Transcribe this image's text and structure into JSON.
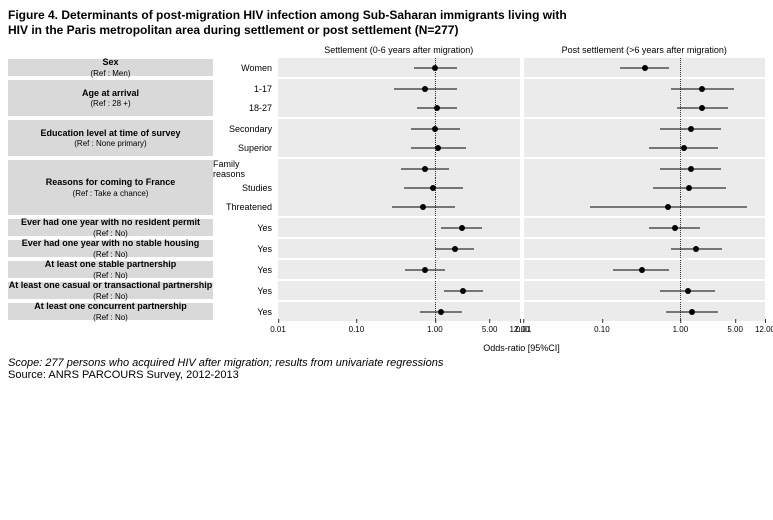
{
  "title_l1": "Figure 4. Determinants of post-migration HIV infection among Sub-Saharan immigrants living with",
  "title_l2": "HIV in the Paris metropolitan area during settlement or post settlement (N=277)",
  "panel_titles": [
    "Settlement (0-6 years after migration)",
    "Post settlement (>6 years after migration)"
  ],
  "xaxis": {
    "label": "Odds-ratio [95%CI]",
    "log_min": 0.01,
    "log_max": 12.0,
    "ticks": [
      0.01,
      0.1,
      1.0,
      5.0,
      12.0
    ],
    "tick_labels": [
      "0.01",
      "0.10",
      "1.00",
      "5.00",
      "12.00"
    ],
    "refline": 1.0
  },
  "colors": {
    "strip_bg": "#ebebeb",
    "group_bg": "#d9d9d9",
    "point": "#000000",
    "refline": "#333333",
    "background": "#ffffff"
  },
  "groups": [
    {
      "label": "Sex",
      "ref": "(Ref : Men)",
      "levels": [
        {
          "name": "Women",
          "panelA": {
            "or": 1.0,
            "lo": 0.55,
            "hi": 1.9
          },
          "panelB": {
            "or": 0.35,
            "lo": 0.17,
            "hi": 0.72
          }
        }
      ]
    },
    {
      "label": "Age at arrival",
      "ref": "(Ref : 28 +)",
      "levels": [
        {
          "name": "1-17",
          "panelA": {
            "or": 0.75,
            "lo": 0.3,
            "hi": 1.9
          },
          "panelB": {
            "or": 1.9,
            "lo": 0.75,
            "hi": 4.8
          }
        },
        {
          "name": "18-27",
          "panelA": {
            "or": 1.05,
            "lo": 0.6,
            "hi": 1.9
          },
          "panelB": {
            "or": 1.9,
            "lo": 0.9,
            "hi": 4.0
          }
        }
      ]
    },
    {
      "label": "Education level at time of survey",
      "ref": "(Ref : None primary)",
      "levels": [
        {
          "name": "Secondary",
          "panelA": {
            "or": 1.0,
            "lo": 0.5,
            "hi": 2.1
          },
          "panelB": {
            "or": 1.35,
            "lo": 0.55,
            "hi": 3.3
          }
        },
        {
          "name": "Superior",
          "panelA": {
            "or": 1.1,
            "lo": 0.5,
            "hi": 2.5
          },
          "panelB": {
            "or": 1.1,
            "lo": 0.4,
            "hi": 3.0
          }
        }
      ]
    },
    {
      "label": "Reasons for coming to France",
      "ref": "(Ref : Take a chance)",
      "levels": [
        {
          "name": "Family reasons",
          "panelA": {
            "or": 0.75,
            "lo": 0.37,
            "hi": 1.5
          },
          "panelB": {
            "or": 1.35,
            "lo": 0.55,
            "hi": 3.3
          }
        },
        {
          "name": "Studies",
          "panelA": {
            "or": 0.95,
            "lo": 0.4,
            "hi": 2.3
          },
          "panelB": {
            "or": 1.3,
            "lo": 0.45,
            "hi": 3.8
          }
        },
        {
          "name": "Threatened",
          "panelA": {
            "or": 0.7,
            "lo": 0.28,
            "hi": 1.8
          },
          "panelB": {
            "or": 0.7,
            "lo": 0.07,
            "hi": 7.0
          }
        }
      ]
    },
    {
      "label": "Ever had one year with no resident permit",
      "ref": "(Ref : No)",
      "levels": [
        {
          "name": "Yes",
          "panelA": {
            "or": 2.2,
            "lo": 1.2,
            "hi": 4.0
          },
          "panelB": {
            "or": 0.85,
            "lo": 0.4,
            "hi": 1.8
          }
        }
      ]
    },
    {
      "label": "Ever had one year with no stable housing",
      "ref": "(Ref : No)",
      "levels": [
        {
          "name": "Yes",
          "panelA": {
            "or": 1.8,
            "lo": 1.0,
            "hi": 3.2
          },
          "panelB": {
            "or": 1.6,
            "lo": 0.75,
            "hi": 3.4
          }
        }
      ]
    },
    {
      "label": "At least one stable partnership",
      "ref": "(Ref : No)",
      "levels": [
        {
          "name": "Yes",
          "panelA": {
            "or": 0.75,
            "lo": 0.42,
            "hi": 1.35
          },
          "panelB": {
            "or": 0.32,
            "lo": 0.14,
            "hi": 0.72
          }
        }
      ]
    },
    {
      "label": "At least one casual or transactional partnership",
      "ref": "(Ref : No)",
      "levels": [
        {
          "name": "Yes",
          "panelA": {
            "or": 2.3,
            "lo": 1.3,
            "hi": 4.1
          },
          "panelB": {
            "or": 1.25,
            "lo": 0.55,
            "hi": 2.8
          }
        }
      ]
    },
    {
      "label": "At least one concurrent partnership",
      "ref": "(Ref : No)",
      "levels": [
        {
          "name": "Yes",
          "panelA": {
            "or": 1.2,
            "lo": 0.65,
            "hi": 2.2
          },
          "panelB": {
            "or": 1.4,
            "lo": 0.65,
            "hi": 3.0
          }
        }
      ]
    }
  ],
  "footer_scope": "Scope: 277 persons who acquired HIV after migration; results from univariate regressions",
  "footer_source": "Source: ANRS PARCOURS Survey, 2012-2013"
}
